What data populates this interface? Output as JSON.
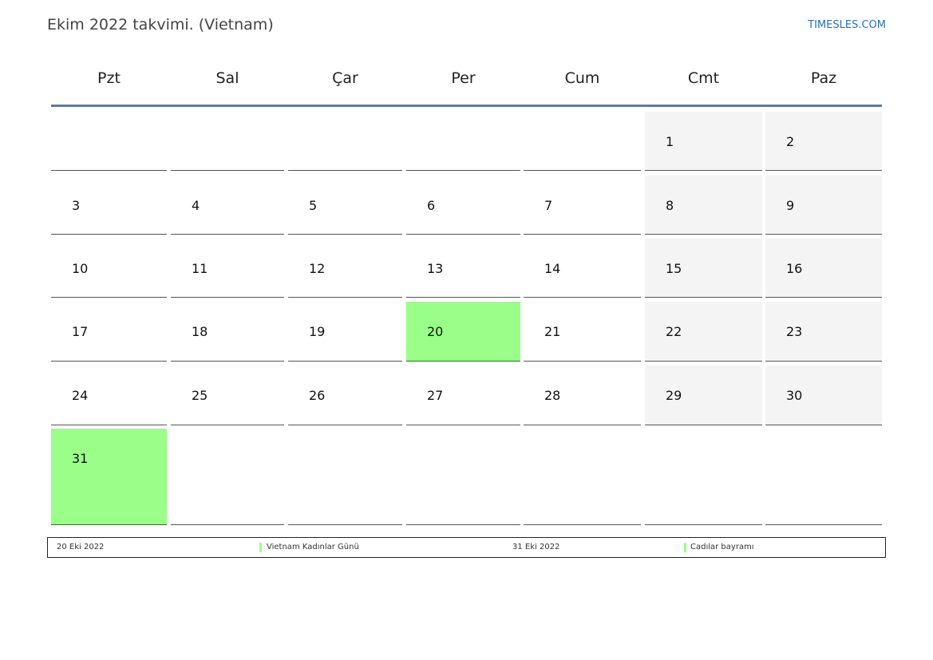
{
  "header": {
    "title": "Ekim 2022 takvimi. (Vietnam)",
    "site": "TIMESLES.COM"
  },
  "calendar": {
    "weekdays": [
      "Pzt",
      "Sal",
      "Çar",
      "Per",
      "Cum",
      "Cmt",
      "Paz"
    ],
    "weeks": [
      [
        "",
        "",
        "",
        "",
        "",
        "1",
        "2"
      ],
      [
        "3",
        "4",
        "5",
        "6",
        "7",
        "8",
        "9"
      ],
      [
        "10",
        "11",
        "12",
        "13",
        "14",
        "15",
        "16"
      ],
      [
        "17",
        "18",
        "19",
        "20",
        "21",
        "22",
        "23"
      ],
      [
        "24",
        "25",
        "26",
        "27",
        "28",
        "29",
        "30"
      ],
      [
        "31",
        "",
        "",
        "",
        "",
        "",
        ""
      ]
    ],
    "holidays": [
      "20",
      "31"
    ],
    "colors": {
      "holiday": "#99ff88",
      "weekend": "#f4f4f4",
      "header_line": "#5c7ba4"
    }
  },
  "legend": {
    "items": [
      {
        "date": "20 Eki 2022",
        "name": "Vietnam Kadınlar Günü"
      },
      {
        "date": "31 Eki 2022",
        "name": "Cadılar bayramı"
      }
    ]
  }
}
